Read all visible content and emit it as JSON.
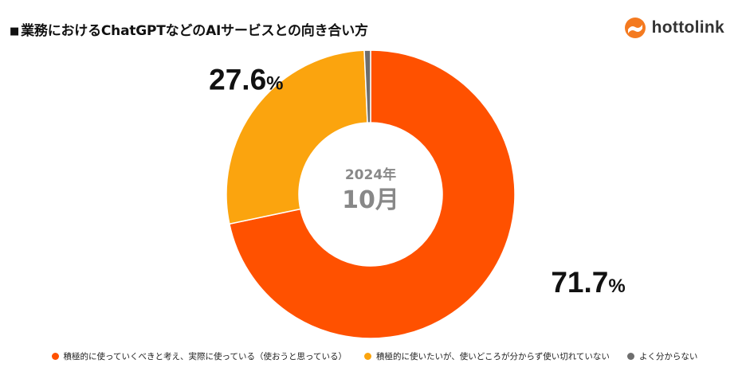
{
  "title": "業務におけるChatGPTなどのAIサービスとの向き合い方",
  "logo": {
    "text": "hottolink",
    "icon": "flame-logo-icon"
  },
  "center": {
    "year": "2024年",
    "month": "10月"
  },
  "chart_data": {
    "type": "pie",
    "variant": "donut",
    "title": "業務におけるChatGPTなどのAIサービスとの向き合い方",
    "series": [
      {
        "name": "積極的に使っていくべきと考え、実際に使っている（使おうと思っている）",
        "value": 71.7,
        "label": "71.7",
        "color": "#FF5100"
      },
      {
        "name": "積極的に使いたいが、使いどころが分からず使い切れていない",
        "value": 27.6,
        "label": "27.6",
        "color": "#FBA40E"
      },
      {
        "name": "よく分からない",
        "value": 0.7,
        "label": "",
        "color": "#6E6E6E"
      }
    ],
    "unit": "%",
    "legend_position": "bottom"
  }
}
